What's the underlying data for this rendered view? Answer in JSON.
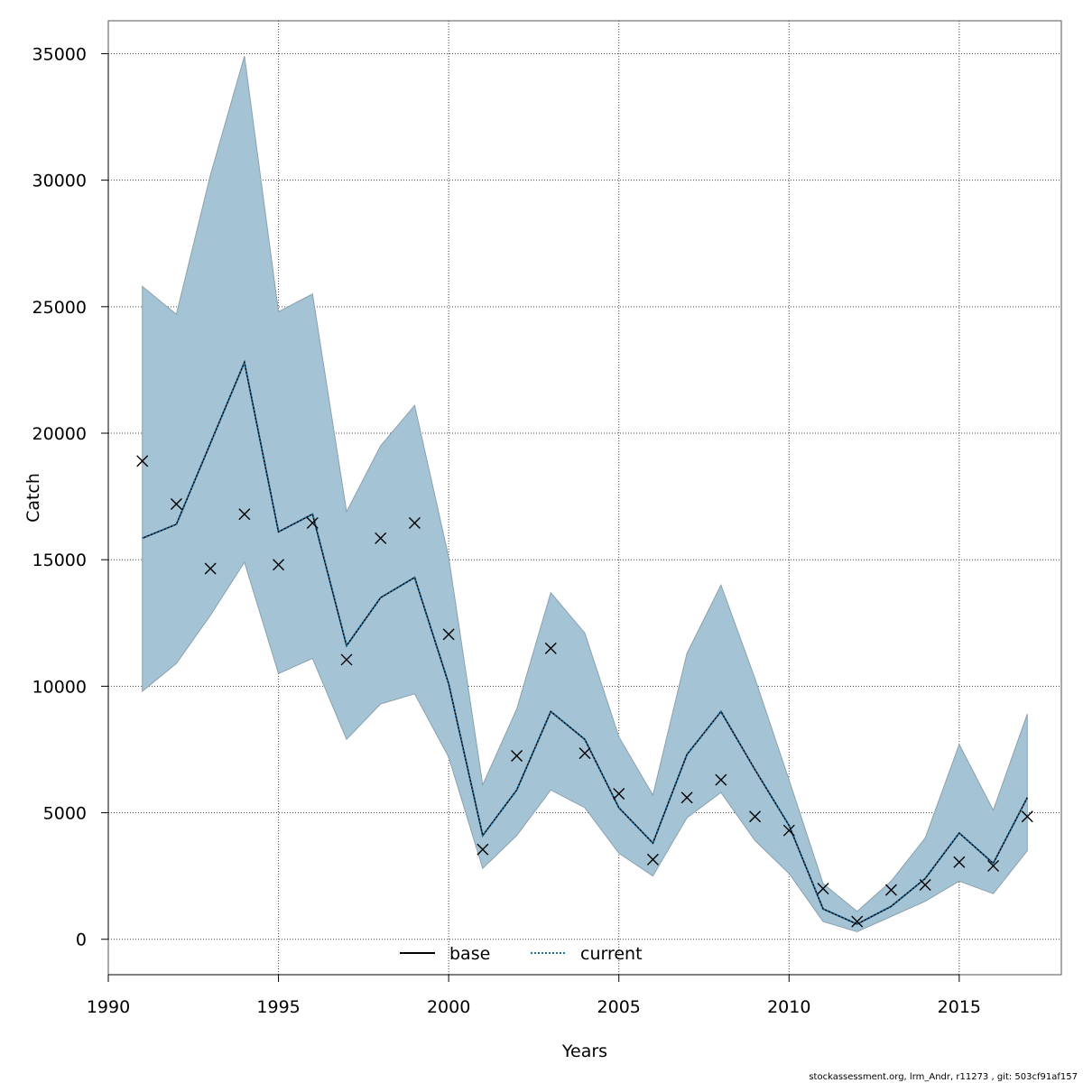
{
  "chart_data": {
    "type": "line",
    "xlabel": "Years",
    "ylabel": "Catch",
    "xlim": [
      1990,
      2018
    ],
    "ylim": [
      -1400,
      36300
    ],
    "x_ticks": [
      1990,
      1995,
      2000,
      2005,
      2010,
      2015
    ],
    "y_ticks": [
      0,
      5000,
      10000,
      15000,
      20000,
      25000,
      30000,
      35000
    ],
    "grid": true,
    "legend_position": "bottom",
    "x": [
      1991,
      1992,
      1993,
      1994,
      1995,
      1996,
      1997,
      1998,
      1999,
      2000,
      2001,
      2002,
      2003,
      2004,
      2005,
      2006,
      2007,
      2008,
      2009,
      2010,
      2011,
      2012,
      2013,
      2014,
      2015,
      2016,
      2017
    ],
    "series": [
      {
        "name": "base",
        "style": "solid",
        "color": "#000000",
        "values": [
          15850,
          16400,
          19600,
          22800,
          16100,
          16800,
          11600,
          13500,
          14300,
          10100,
          4100,
          5900,
          9000,
          7900,
          5200,
          3800,
          7300,
          9000,
          6700,
          4500,
          1200,
          600,
          1300,
          2400,
          4200,
          3000,
          5600
        ]
      },
      {
        "name": "current",
        "style": "dotted",
        "color": "#1f6f9f",
        "values": [
          15850,
          16400,
          19600,
          22800,
          16100,
          16800,
          11600,
          13500,
          14300,
          10100,
          4100,
          5900,
          9000,
          7900,
          5200,
          3800,
          7300,
          9000,
          6700,
          4500,
          1200,
          600,
          1300,
          2400,
          4200,
          3000,
          5600
        ]
      }
    ],
    "band": {
      "color": "#a4c4d6",
      "lower": [
        9800,
        10900,
        12800,
        14900,
        10500,
        11100,
        7900,
        9300,
        9700,
        7200,
        2800,
        4100,
        5900,
        5200,
        3400,
        2500,
        4800,
        5800,
        3900,
        2600,
        700,
        300,
        900,
        1500,
        2300,
        1800,
        3500
      ],
      "upper": [
        25800,
        24700,
        30200,
        34900,
        24800,
        25500,
        16900,
        19500,
        21100,
        15100,
        6100,
        9100,
        13700,
        12100,
        8000,
        5700,
        11300,
        14000,
        10300,
        6300,
        2200,
        1100,
        2300,
        4000,
        7700,
        5100,
        8900
      ]
    },
    "observed": {
      "marker": "x",
      "values": [
        18900,
        17200,
        14650,
        16800,
        14800,
        16450,
        11050,
        15850,
        16450,
        12050,
        3550,
        7250,
        11500,
        7350,
        5750,
        3150,
        5600,
        6300,
        4850,
        4300,
        2000,
        700,
        1950,
        2150,
        3050,
        2900,
        4850
      ]
    }
  },
  "footnote": "stockassessment.org, lrm_Andr, r11273 , git: 503cf91af157"
}
